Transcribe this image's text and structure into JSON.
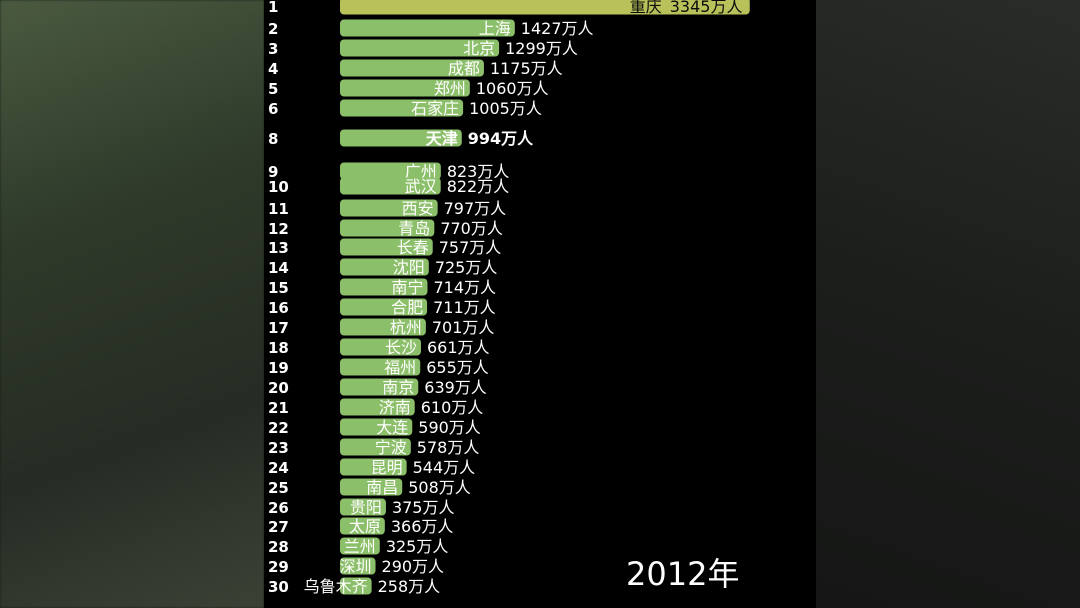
{
  "year_label": "2012年",
  "unit_suffix": "万人",
  "colors": {
    "leader_bar": "#b9c25a",
    "bar": "#8cbf6a",
    "label_dark": "#0b0b0b",
    "text": "#ffffff",
    "background": "#000000"
  },
  "chart_data": {
    "type": "bar",
    "orientation": "horizontal",
    "title": "",
    "xlabel": "",
    "ylabel": "",
    "categories": [
      "重庆",
      "上海",
      "北京",
      "成都",
      "郑州",
      "石家庄",
      "天津",
      "广州",
      "武汉",
      "西安",
      "青岛",
      "长春",
      "沈阳",
      "南宁",
      "合肥",
      "杭州",
      "长沙",
      "福州",
      "南京",
      "济南",
      "大连",
      "宁波",
      "昆明",
      "南昌",
      "贵阳",
      "太原",
      "兰州",
      "深圳",
      "乌鲁木齐"
    ],
    "ranks": [
      "1",
      "2",
      "3",
      "4",
      "5",
      "6",
      "8",
      "9",
      "10",
      "11",
      "12",
      "13",
      "14",
      "15",
      "16",
      "17",
      "18",
      "19",
      "20",
      "21",
      "22",
      "23",
      "24",
      "25",
      "26",
      "27",
      "28",
      "29",
      "30"
    ],
    "values": [
      3345,
      1427,
      1299,
      1175,
      1060,
      1005,
      994,
      823,
      822,
      797,
      770,
      757,
      725,
      714,
      711,
      701,
      661,
      655,
      639,
      610,
      590,
      578,
      544,
      508,
      375,
      366,
      325,
      290,
      258
    ],
    "value_labels": [
      "3345万人",
      "1427万人",
      "1299万人",
      "1175万人",
      "1060万人",
      "1005万人",
      "994万人",
      "823万人",
      "822万人",
      "797万人",
      "770万人",
      "757万人",
      "725万人",
      "714万人",
      "711万人",
      "701万人",
      "661万人",
      "655万人",
      "639万人",
      "610万人",
      "590万人",
      "578万人",
      "544万人",
      "508万人",
      "375万人",
      "366万人",
      "325万人",
      "290万人",
      "258万人"
    ]
  }
}
